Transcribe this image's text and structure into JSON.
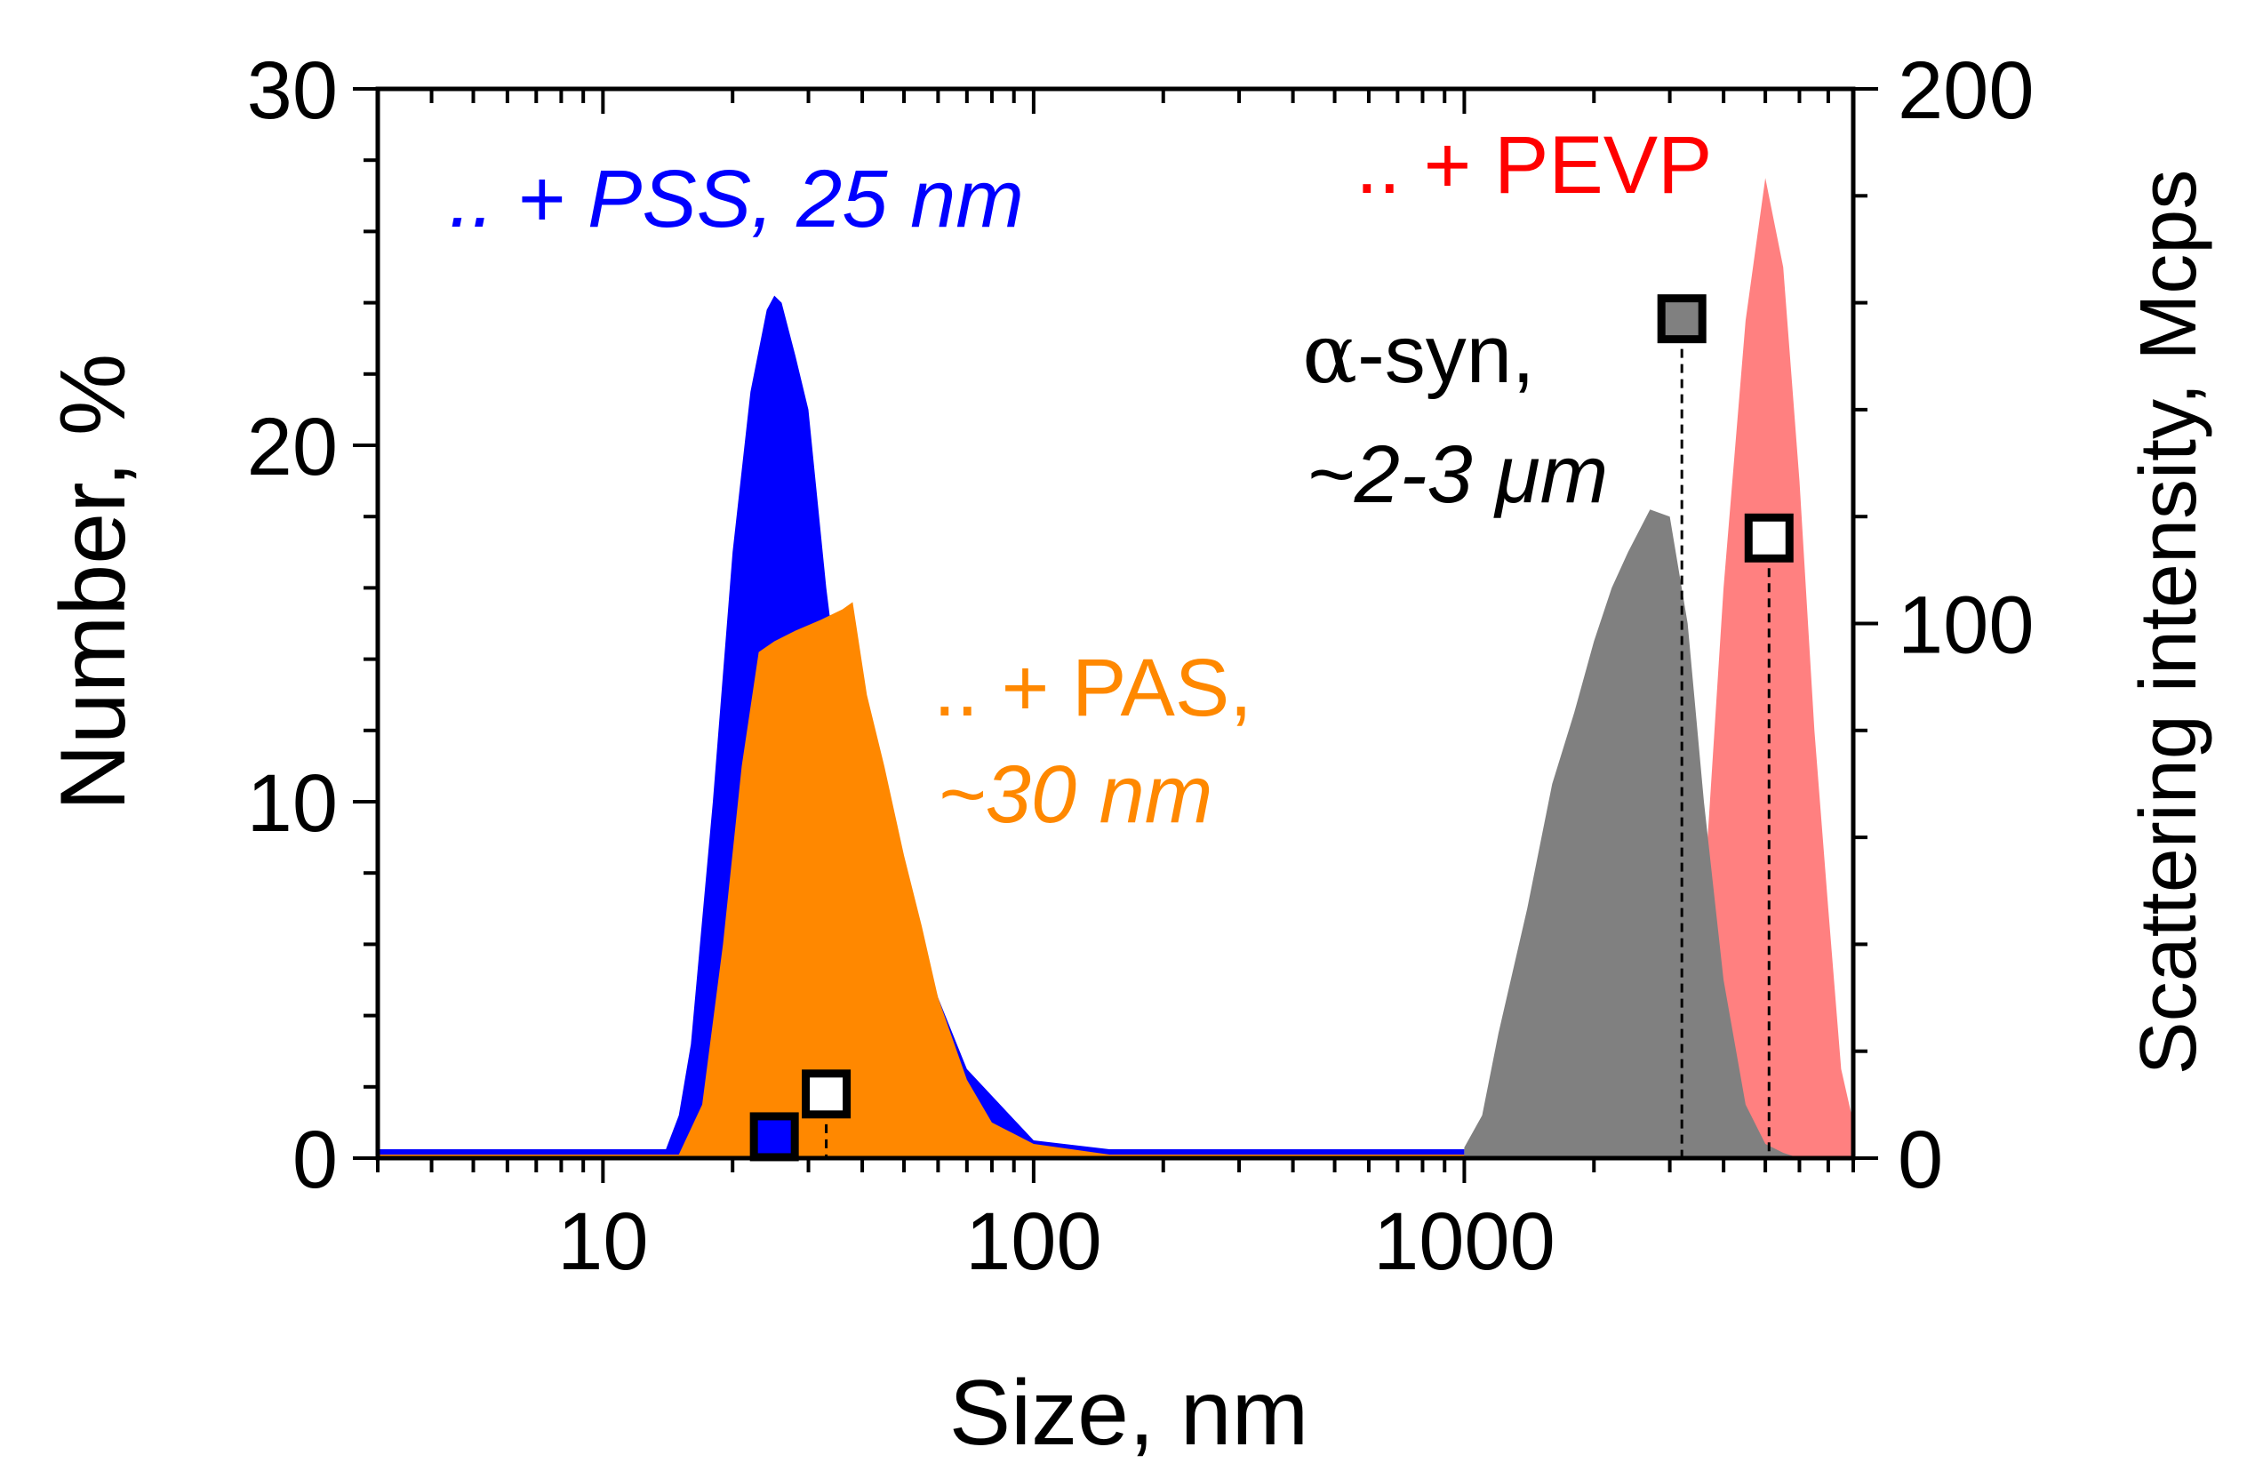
{
  "chart_data": {
    "type": "area",
    "xlabel": "Size, nm",
    "ylabel": "Number, %",
    "y2label": "Scattering intensity, Mcps",
    "xscale": "log",
    "xlim": [
      3,
      8000
    ],
    "ylim": [
      0,
      30
    ],
    "y2lim": [
      0,
      200
    ],
    "xticks": [
      10,
      100,
      1000
    ],
    "xtick_labels": [
      "10",
      "100",
      "1000"
    ],
    "yticks": [
      0,
      10,
      20,
      30
    ],
    "ytick_labels": [
      "0",
      "10",
      "20",
      "30"
    ],
    "y2ticks": [
      0,
      100,
      200
    ],
    "y2tick_labels": [
      "0",
      "100",
      "200"
    ],
    "series": [
      {
        "name": ".. + PSS, 25 nm",
        "color": "#0000FF",
        "axis": "left",
        "x": [
          3,
          14,
          15,
          16,
          18,
          20,
          22,
          24,
          25,
          26,
          28,
          30,
          33,
          35,
          40,
          50,
          60,
          70,
          100,
          150,
          1000
        ],
        "y": [
          0.25,
          0.25,
          1.2,
          3.2,
          10,
          17,
          21.5,
          23.8,
          24.2,
          24,
          22.5,
          21,
          16,
          13.5,
          12,
          8,
          4.5,
          2.5,
          0.5,
          0.25,
          0.25
        ]
      },
      {
        "name": ".. + PAS, ~30 nm",
        "color": "#FF8800",
        "axis": "left",
        "x": [
          3,
          15,
          17,
          19,
          21,
          23,
          25,
          28,
          32,
          36,
          38,
          41,
          45,
          50,
          55,
          60,
          70,
          80,
          100,
          150,
          1000
        ],
        "y": [
          0.1,
          0.1,
          1.5,
          6,
          11,
          14.2,
          14.5,
          14.8,
          15.1,
          15.4,
          15.6,
          13,
          11,
          8.5,
          6.5,
          4.5,
          2.2,
          1,
          0.4,
          0.1,
          0.1
        ]
      },
      {
        "name": ".. + PEVP",
        "color": "#FF8080",
        "axis": "left",
        "x": [
          3000,
          3500,
          4000,
          4500,
          5000,
          5500,
          6000,
          6500,
          7000,
          7500,
          8000
        ],
        "y": [
          0.3,
          5,
          16,
          23.5,
          27.5,
          25,
          19,
          12,
          7,
          2.5,
          1
        ]
      },
      {
        "name": "α-syn, ~2-3 μm",
        "color": "#808080",
        "axis": "left",
        "x": [
          1000,
          1100,
          1200,
          1400,
          1600,
          1800,
          2000,
          2200,
          2400,
          2700,
          3000,
          3300,
          3600,
          4000,
          4500,
          5000,
          5500,
          6000
        ],
        "y": [
          0.3,
          1.2,
          3.5,
          7,
          10.5,
          12.5,
          14.5,
          16,
          17,
          18.2,
          18,
          15,
          10,
          5,
          1.5,
          0.4,
          0.15,
          0
        ]
      }
    ],
    "markers": [
      {
        "name": "PSS intensity",
        "x": 25,
        "y2": 4,
        "fill": "#0000FF",
        "dashed_drop": false
      },
      {
        "name": "PAS intensity",
        "x": 33,
        "y2": 12,
        "fill": "#FFFFFF",
        "dashed_drop": true
      },
      {
        "name": "α-syn intensity",
        "x": 3200,
        "y2": 157,
        "fill": "#808080",
        "dashed_drop": true,
        "error": 4
      },
      {
        "name": "PEVP intensity",
        "x": 5100,
        "y2": 116,
        "fill": "#FFFFFF",
        "dashed_drop": true
      }
    ],
    "annotations": [
      {
        "text": ".. + PSS, 25 nm",
        "color": "#0000FF",
        "italic": true
      },
      {
        "text": ".. + PEVP",
        "color": "#FF0000",
        "italic": false
      },
      {
        "text_prefix": "α",
        "text": "-syn,",
        "color": "#000000",
        "italic": false
      },
      {
        "text": "~2-3 μm",
        "color": "#000000",
        "italic": true
      },
      {
        "text": ".. + PAS,",
        "color": "#FF8800",
        "italic": false
      },
      {
        "text": "~30 nm",
        "color": "#FF8800",
        "italic": true
      }
    ]
  }
}
